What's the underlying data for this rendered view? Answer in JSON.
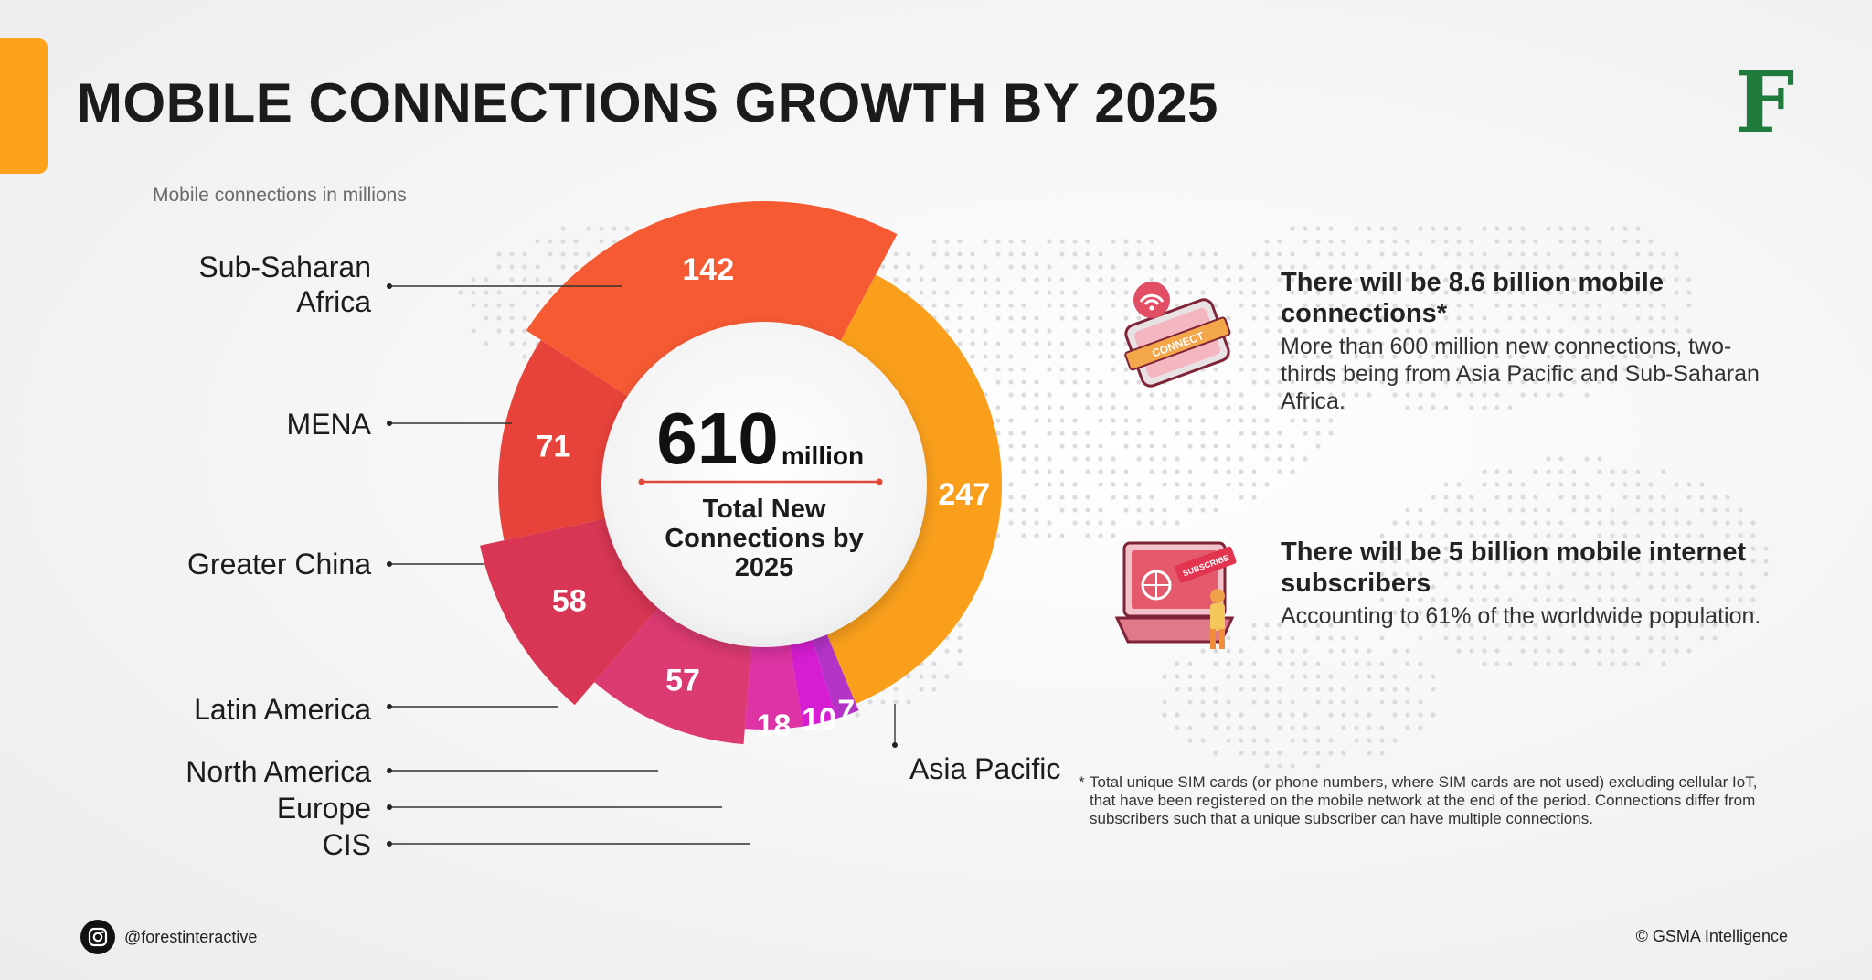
{
  "header": {
    "title": "MOBILE CONNECTIONS GROWTH BY 2025",
    "logo_letter": "F",
    "accent_color": "#fca21b"
  },
  "chart_data": {
    "type": "pie",
    "subtitle": "Mobile connections in millions",
    "unit": "million",
    "total": 610,
    "center_caption": [
      "Total New",
      "Connections by",
      "2025"
    ],
    "categories": [
      "Asia Pacific",
      "CIS",
      "Europe",
      "North America",
      "Latin America",
      "Greater China",
      "MENA",
      "Sub-Saharan Africa"
    ],
    "values": [
      247,
      7,
      10,
      18,
      57,
      58,
      71,
      142
    ],
    "colors": [
      "#fa9f1c",
      "#b233c6",
      "#d61dd2",
      "#de33a4",
      "#dc3a72",
      "#d83654",
      "#e8433a",
      "#f65a33"
    ]
  },
  "facts": [
    {
      "heading": "There will be 8.6 billion mobile connections*",
      "body": "More than 600 million new connections, two-thirds being from Asia Pacific and Sub-Saharan Africa.",
      "icon": "phone-connect-icon"
    },
    {
      "heading": "There will be 5 billion mobile internet subscribers",
      "body": "Accounting to 61% of the worldwide population.",
      "icon": "laptop-subscribe-icon"
    }
  ],
  "icon_text": {
    "connect": "CONNECT",
    "subscribe": "SUBSCRIBE"
  },
  "footnote": {
    "marker": "*",
    "text": "Total unique SIM cards (or phone numbers, where SIM cards are not used) excluding cellular IoT, that have been registered on the mobile network at the end of the period. Connections differ from subscribers such that a unique subscriber can have multiple connections."
  },
  "footer": {
    "handle": "@forestinteractive",
    "credit": "© GSMA Intelligence",
    "social_icon": "instagram-icon"
  }
}
